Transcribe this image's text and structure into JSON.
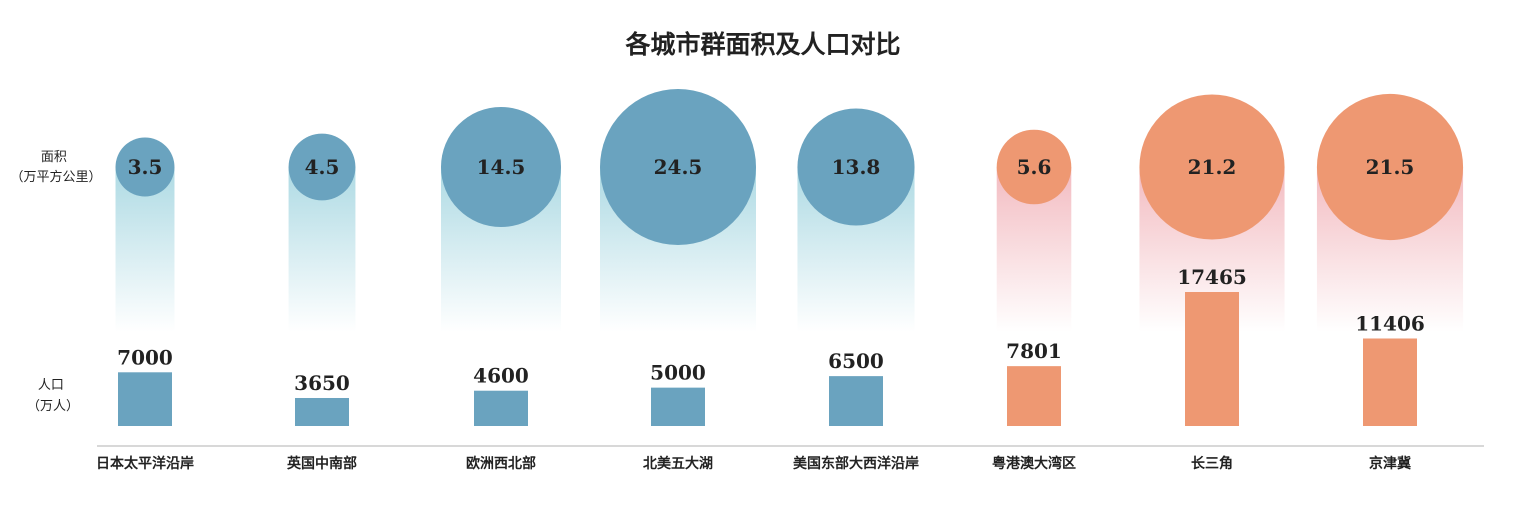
{
  "chart_data": {
    "type": "bubble-bar",
    "title": "各城市群面积及人口对比",
    "area_label": [
      "面积",
      "（万平方公里）"
    ],
    "pop_label": [
      "人口",
      "（万人）"
    ],
    "categories": [
      "日本太平洋沿岸",
      "英国中南部",
      "欧洲西北部",
      "北美五大湖",
      "美国东部大西洋沿岸",
      "粤港澳大湾区",
      "长三角",
      "京津冀"
    ],
    "series": [
      {
        "values": [
          3.5,
          4.5,
          14.5,
          24.5,
          13.8,
          5.6,
          21.2,
          21.5
        ],
        "labels": [
          "3.5",
          "4.5",
          "14.5",
          "24.5",
          "13.8",
          "5.6",
          "21.2",
          "21.5"
        ]
      },
      {
        "values": [
          7000,
          3650,
          4600,
          5000,
          6500,
          7801,
          17465,
          11406
        ]
      }
    ],
    "groups": [
      "foreign",
      "foreign",
      "foreign",
      "foreign",
      "foreign",
      "china",
      "china",
      "china"
    ],
    "colors": {
      "foreign": "#6aa3bf",
      "china": "#ee9872",
      "foreign_glow": "#a9d8e2",
      "china_glow": "#f2b7bd",
      "axis": "#cccccc"
    }
  }
}
